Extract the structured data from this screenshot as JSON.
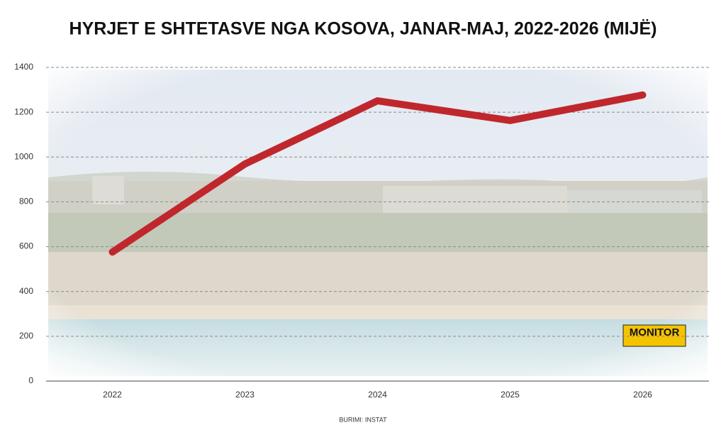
{
  "chart_data": {
    "type": "line",
    "title": "HYRJET E SHTETASVE NGA KOSOVA, JANAR-MAJ, 2022-2026 (MIJË)",
    "source": "BURIMI: INSTAT",
    "logo": "MONITOR",
    "categories": [
      "2022",
      "2023",
      "2024",
      "2025",
      "2026"
    ],
    "values": [
      576,
      969,
      1251,
      1163,
      1277
    ],
    "color": "#c0272d",
    "ylim": [
      0,
      1400
    ],
    "yticks": [
      0,
      200,
      400,
      600,
      800,
      1000,
      1200,
      1400
    ],
    "grid": true
  }
}
